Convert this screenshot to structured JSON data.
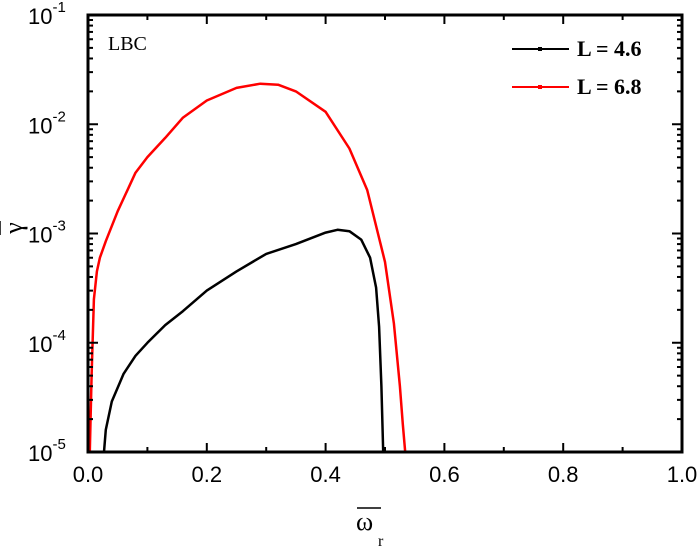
{
  "chart_data": {
    "type": "line",
    "title": "",
    "annotation": "LBC",
    "xlabel": "ω̄_r",
    "xlabel_main": "ω",
    "xlabel_sub": "r",
    "ylabel": "γ̄",
    "ylabel_main": "γ",
    "xlim": [
      0.0,
      1.0
    ],
    "ylim": [
      1e-05,
      0.1
    ],
    "yscale": "log",
    "grid": false,
    "legend_position": "upper right",
    "x_ticks": [
      "0.0",
      "0.2",
      "0.4",
      "0.6",
      "0.8",
      "1.0"
    ],
    "y_ticks": [
      {
        "base": "10",
        "exp": "-1"
      },
      {
        "base": "10",
        "exp": "-2"
      },
      {
        "base": "10",
        "exp": "-3"
      },
      {
        "base": "10",
        "exp": "-4"
      },
      {
        "base": "10",
        "exp": "-5"
      }
    ],
    "series": [
      {
        "name": "L = 4.6",
        "color": "#000000",
        "x": [
          0.027,
          0.03,
          0.04,
          0.06,
          0.08,
          0.1,
          0.13,
          0.16,
          0.2,
          0.25,
          0.3,
          0.35,
          0.4,
          0.42,
          0.44,
          0.46,
          0.475,
          0.485,
          0.49,
          0.494,
          0.497
        ],
        "y": [
          1e-05,
          1.6e-05,
          2.9e-05,
          5.2e-05,
          7.6e-05,
          0.0001,
          0.000145,
          0.000195,
          0.0003,
          0.00045,
          0.00065,
          0.0008,
          0.00102,
          0.00108,
          0.00105,
          0.00088,
          0.0006,
          0.00032,
          0.00014,
          4e-05,
          1e-05
        ]
      },
      {
        "name": "L = 6.8",
        "color": "#ff0000",
        "x": [
          0.003,
          0.006,
          0.01,
          0.015,
          0.02,
          0.03,
          0.05,
          0.08,
          0.1,
          0.13,
          0.16,
          0.2,
          0.25,
          0.29,
          0.32,
          0.35,
          0.4,
          0.44,
          0.47,
          0.5,
          0.515,
          0.525,
          0.53,
          0.534
        ],
        "y": [
          1e-05,
          5e-05,
          0.00025,
          0.00045,
          0.0006,
          0.00085,
          0.0016,
          0.0036,
          0.005,
          0.0075,
          0.0115,
          0.0165,
          0.0215,
          0.0235,
          0.023,
          0.02,
          0.013,
          0.006,
          0.0025,
          0.00055,
          0.00015,
          4e-05,
          1.8e-05,
          1e-05
        ]
      }
    ]
  }
}
